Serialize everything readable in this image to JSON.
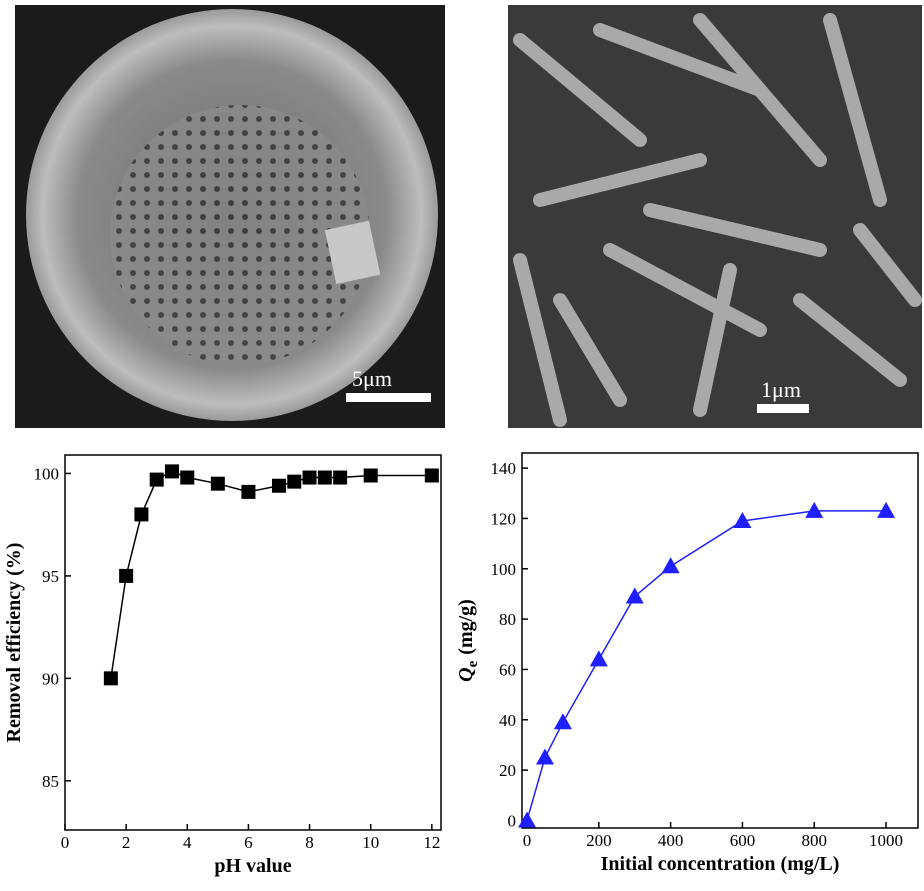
{
  "images": [
    {
      "scale_bar": "5μm"
    },
    {
      "scale_bar": "1μm"
    }
  ],
  "chart_data": [
    {
      "type": "line",
      "xlabel": "pH value",
      "ylabel": "Removal efficiency (%)",
      "x": [
        1.5,
        2,
        2.5,
        3,
        3.5,
        4,
        5,
        6,
        7,
        7.5,
        8,
        8.5,
        9,
        10,
        12
      ],
      "series": [
        {
          "color": "#000000",
          "marker": "square",
          "values": [
            90,
            95,
            98,
            99.7,
            100.1,
            99.8,
            99.5,
            99.1,
            99.4,
            99.6,
            99.8,
            99.8,
            99.8,
            99.9,
            99.9
          ]
        }
      ],
      "xlim": [
        0,
        12.3
      ],
      "xticks": [
        0,
        2,
        4,
        6,
        8,
        10,
        12
      ],
      "ylim": [
        82.6,
        100.9
      ],
      "yticks": [
        85,
        90,
        95,
        100
      ]
    },
    {
      "type": "line",
      "xlabel": "Initial concentration (mg/L)",
      "ylabel_symbol": "Q",
      "ylabel_subscript": "e",
      "ylabel_unit": "(mg/g)",
      "x": [
        0,
        50,
        100,
        200,
        300,
        400,
        600,
        800,
        1000
      ],
      "series": [
        {
          "color": "#1f1fff",
          "marker": "triangle",
          "values": [
            0,
            25,
            39,
            64,
            89,
            101,
            119,
            123,
            123
          ]
        }
      ],
      "xlim": [
        -14,
        1089
      ],
      "xticks": [
        0,
        200,
        400,
        600,
        800,
        1000
      ],
      "ylim": [
        -3,
        146
      ],
      "yticks": [
        0,
        20,
        40,
        60,
        80,
        100,
        120,
        140
      ]
    }
  ]
}
